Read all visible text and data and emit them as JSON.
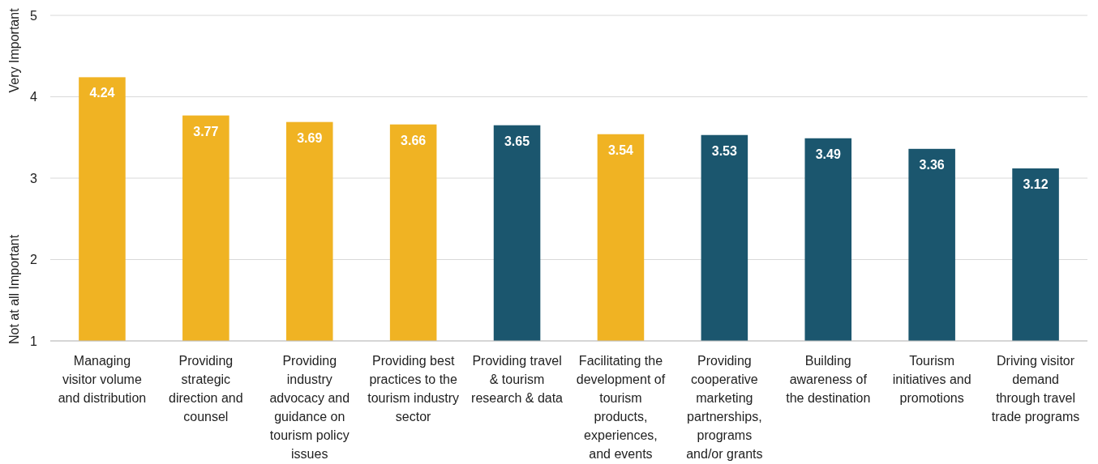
{
  "chart_data": {
    "type": "bar",
    "categories": [
      "Managing visitor volume and distribution",
      "Providing strategic direction and counsel",
      "Providing industry advocacy and guidance on tourism policy issues",
      "Providing best practices to the tourism industry sector",
      "Providing travel & tourism research & data",
      "Facilitating the development of tourism products, experiences, and events",
      "Providing cooperative marketing partnerships, programs and/or grants",
      "Building awareness of the destination",
      "Tourism initiatives and promotions",
      "Driving visitor demand through travel trade programs"
    ],
    "values": [
      4.24,
      3.77,
      3.69,
      3.66,
      3.65,
      3.54,
      3.53,
      3.49,
      3.36,
      3.12
    ],
    "colors": [
      "#f0b323",
      "#f0b323",
      "#f0b323",
      "#f0b323",
      "#1b566e",
      "#f0b323",
      "#1b566e",
      "#1b566e",
      "#1b566e",
      "#1b566e"
    ],
    "ylim": [
      1,
      5
    ],
    "yticks": [
      1,
      2,
      3,
      4,
      5
    ],
    "grid": "y",
    "data_labels": true,
    "annotations": [
      "Not at all Important",
      "Very Important"
    ]
  }
}
